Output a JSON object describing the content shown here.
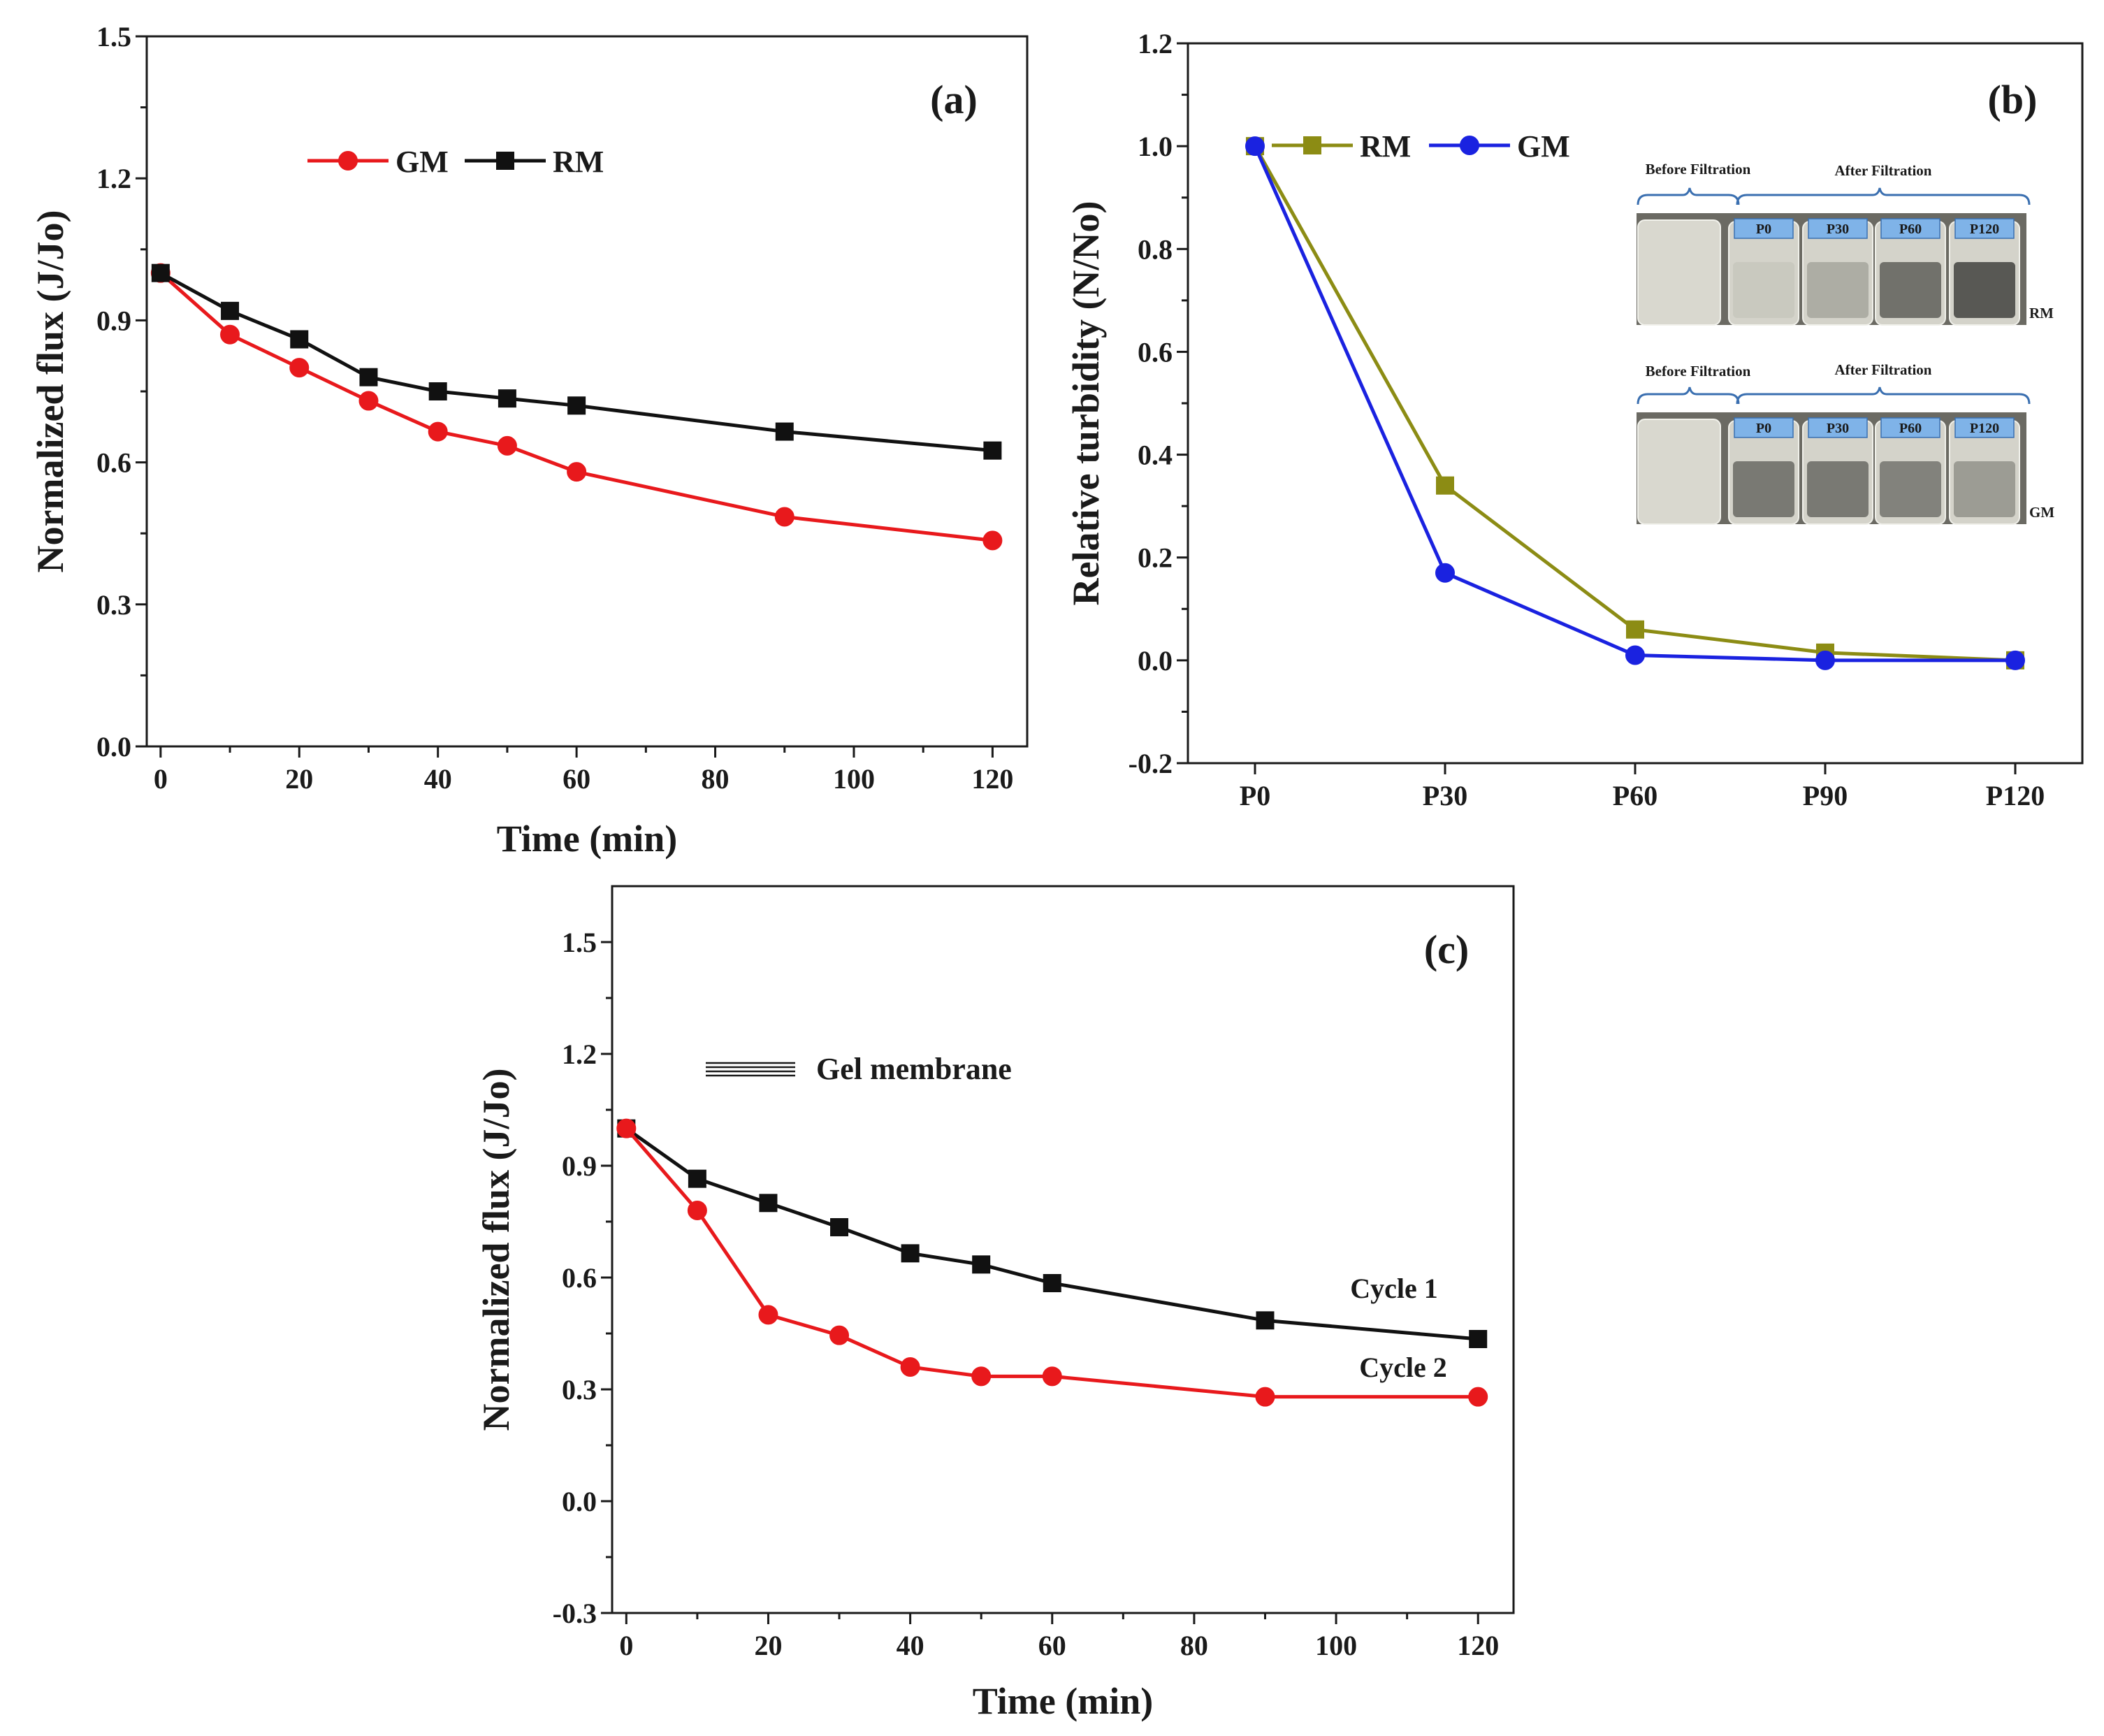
{
  "chart_data": [
    {
      "id": "a",
      "type": "line",
      "panel_label": "(a)",
      "xlabel": "Time (min)",
      "ylabel": "Normalized flux (J/Jo)",
      "xlim": [
        -2,
        125
      ],
      "ylim": [
        0.0,
        1.5
      ],
      "xticks": [
        0,
        20,
        40,
        60,
        80,
        100,
        120
      ],
      "xtick_labels": [
        "0",
        "20",
        "40",
        "60",
        "80",
        "100",
        "120"
      ],
      "yticks": [
        0.0,
        0.3,
        0.6,
        0.9,
        1.2,
        1.5
      ],
      "ytick_labels": [
        "0.0",
        "0.3",
        "0.6",
        "0.9",
        "1.2",
        "1.5"
      ],
      "legend": {
        "position": "top-left",
        "order": [
          "GM",
          "RM"
        ]
      },
      "x": [
        0,
        10,
        20,
        30,
        40,
        50,
        60,
        90,
        120
      ],
      "series": [
        {
          "name": "GM",
          "color": "#e8191c",
          "marker": "circle",
          "values": [
            1.0,
            0.87,
            0.8,
            0.73,
            0.665,
            0.635,
            0.58,
            0.485,
            0.435
          ]
        },
        {
          "name": "RM",
          "color": "#111111",
          "marker": "square",
          "values": [
            1.0,
            0.92,
            0.86,
            0.78,
            0.75,
            0.735,
            0.72,
            0.665,
            0.625
          ]
        }
      ]
    },
    {
      "id": "b",
      "type": "line",
      "panel_label": "(b)",
      "xlabel": "",
      "ylabel": "Relative turbidity (N/No)",
      "categories": [
        "P0",
        "P30",
        "P60",
        "P90",
        "P120"
      ],
      "ylim": [
        -0.2,
        1.2
      ],
      "yticks": [
        -0.2,
        0.0,
        0.2,
        0.4,
        0.6,
        0.8,
        1.0,
        1.2
      ],
      "ytick_labels": [
        "-0.2",
        "0.0",
        "0.2",
        "0.4",
        "0.6",
        "0.8",
        "1.0",
        "1.2"
      ],
      "legend": {
        "position": "top-left",
        "order": [
          "RM",
          "GM"
        ]
      },
      "series": [
        {
          "name": "RM",
          "color": "#8c8c14",
          "marker": "square",
          "values": [
            1.0,
            0.34,
            0.06,
            0.015,
            0.0
          ]
        },
        {
          "name": "GM",
          "color": "#1a22e0",
          "marker": "circle",
          "values": [
            1.0,
            0.17,
            0.01,
            0.0,
            0.0
          ]
        }
      ],
      "inset_photos": [
        {
          "id": "rm",
          "side_label": "RM",
          "before_caption": "Before Filtration",
          "after_caption": "After Filtration",
          "vial_labels": [
            "P0",
            "P30",
            "P60",
            "P120"
          ],
          "vial_tint": [
            0.08,
            0.25,
            0.6,
            0.75
          ]
        },
        {
          "id": "gm",
          "side_label": "GM",
          "before_caption": "Before Filtration",
          "after_caption": "After Filtration",
          "vial_labels": [
            "P0",
            "P30",
            "P60",
            "P120"
          ],
          "vial_tint": [
            0.55,
            0.55,
            0.5,
            0.35
          ]
        }
      ]
    },
    {
      "id": "c",
      "type": "line",
      "panel_label": "(c)",
      "xlabel": "Time (min)",
      "ylabel": "Normalized flux (J/Jo)",
      "xlim": [
        -2,
        125
      ],
      "ylim": [
        -0.3,
        1.65
      ],
      "xticks": [
        0,
        20,
        40,
        60,
        80,
        100,
        120
      ],
      "xtick_labels": [
        "0",
        "20",
        "40",
        "60",
        "80",
        "100",
        "120"
      ],
      "yticks": [
        -0.3,
        0.0,
        0.3,
        0.6,
        0.9,
        1.2,
        1.5
      ],
      "ytick_labels": [
        "-0.3",
        "0.0",
        "0.3",
        "0.6",
        "0.9",
        "1.2",
        "1.5"
      ],
      "legend": {
        "position": "top-left",
        "text": "Gel membrane"
      },
      "x": [
        0,
        10,
        20,
        30,
        40,
        50,
        60,
        90,
        120
      ],
      "series": [
        {
          "name": "Cycle 1",
          "color": "#111111",
          "marker": "square",
          "values": [
            1.0,
            0.865,
            0.8,
            0.735,
            0.665,
            0.635,
            0.585,
            0.485,
            0.435
          ]
        },
        {
          "name": "Cycle 2",
          "color": "#e8191c",
          "marker": "circle",
          "values": [
            1.0,
            0.78,
            0.5,
            0.445,
            0.36,
            0.335,
            0.335,
            0.28,
            0.28
          ]
        }
      ],
      "annotations": [
        "Cycle 1",
        "Cycle 2"
      ]
    }
  ]
}
